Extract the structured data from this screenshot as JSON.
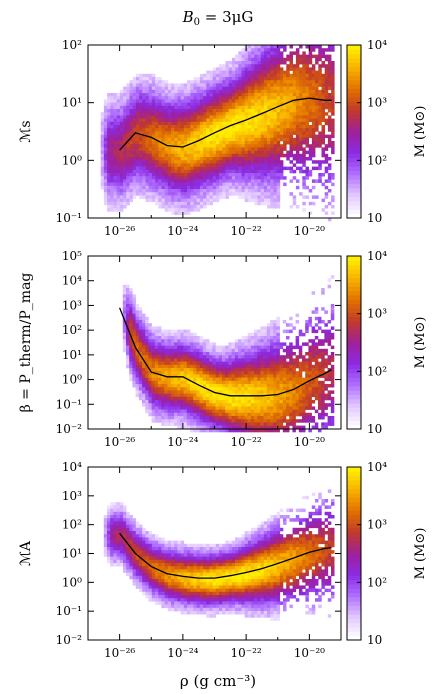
{
  "figure": {
    "title_parts": {
      "base": "B",
      "sub": "0",
      "rest": " = 3μG"
    },
    "xlabel": "ρ  (g cm⁻³)"
  },
  "colors": {
    "cmap": [
      "#ffffff",
      "#e2c8ff",
      "#b070ff",
      "#8a2be2",
      "#a0209a",
      "#c0392b",
      "#e07000",
      "#f8b000",
      "#ffee00"
    ]
  },
  "chart_data": [
    {
      "type": "heatmap",
      "panel": "top",
      "ylabel": "ℳs",
      "xscale": "log",
      "yscale": "log",
      "xlim": [
        1e-27,
        1e-19
      ],
      "ylim": [
        0.1,
        100
      ],
      "x_ticks": [
        "10⁻²⁶",
        "10⁻²⁴",
        "10⁻²²",
        "10⁻²⁰"
      ],
      "y_ticks": [
        "10⁻¹",
        "10⁰",
        "10¹",
        "10²"
      ],
      "colorbar": {
        "label": "M (M⊙)",
        "range": [
          10,
          10000
        ],
        "ticks": [
          "10",
          "10²",
          "10³",
          "10⁴"
        ],
        "scale": "log"
      },
      "cloud": {
        "xmin": -26.7,
        "xmax": -19.3,
        "center": [
          -22.5,
          0.6
        ],
        "width_dex": 0.7
      },
      "median_line": {
        "x_log": [
          -26.0,
          -25.5,
          -25.0,
          -24.5,
          -24.0,
          -23.5,
          -23.0,
          -22.5,
          -22.0,
          -21.5,
          -21.0,
          -20.5,
          -20.0,
          -19.5,
          -19.3
        ],
        "y": [
          1.5,
          3.0,
          2.5,
          1.8,
          1.7,
          2.2,
          3.0,
          4.0,
          5.0,
          6.5,
          8.5,
          11,
          12,
          11,
          11
        ]
      }
    },
    {
      "type": "heatmap",
      "panel": "middle",
      "ylabel": "β = P_therm/P_mag",
      "xscale": "log",
      "yscale": "log",
      "xlim": [
        1e-27,
        1e-19
      ],
      "ylim": [
        0.01,
        100000
      ],
      "x_ticks": [
        "10⁻²⁶",
        "10⁻²⁴",
        "10⁻²²",
        "10⁻²⁰"
      ],
      "y_ticks": [
        "10⁻²",
        "10⁻¹",
        "10⁰",
        "10¹",
        "10²",
        "10³",
        "10⁴",
        "10⁵"
      ],
      "colorbar": {
        "label": "M (M⊙)",
        "range": [
          10,
          10000
        ],
        "ticks": [
          "10",
          "10²",
          "10³",
          "10⁴"
        ],
        "scale": "log"
      },
      "cloud": {
        "xmin": -26.0,
        "xmax": -19.3,
        "center": [
          -22.8,
          -0.3
        ],
        "width_dex": 1.2
      },
      "median_line": {
        "x_log": [
          -26.0,
          -25.5,
          -25.0,
          -24.5,
          -24.0,
          -23.5,
          -23.0,
          -22.5,
          -22.0,
          -21.5,
          -21.0,
          -20.5,
          -20.0,
          -19.5,
          -19.3
        ],
        "y": [
          800,
          20,
          2,
          1.3,
          1.3,
          0.6,
          0.3,
          0.22,
          0.22,
          0.22,
          0.25,
          0.4,
          0.9,
          1.8,
          2.5
        ]
      }
    },
    {
      "type": "heatmap",
      "panel": "bottom",
      "ylabel": "ℳA",
      "xscale": "log",
      "yscale": "log",
      "xlim": [
        1e-27,
        1e-19
      ],
      "ylim": [
        0.01,
        10000
      ],
      "x_ticks": [
        "10⁻²⁶",
        "10⁻²⁴",
        "10⁻²²",
        "10⁻²⁰"
      ],
      "y_ticks": [
        "10⁻²",
        "10⁻¹",
        "10⁰",
        "10¹",
        "10²",
        "10³",
        "10⁴"
      ],
      "colorbar": {
        "label": "M (M⊙)",
        "range": [
          10,
          10000
        ],
        "ticks": [
          "10",
          "10²",
          "10³",
          "10⁴"
        ],
        "scale": "log"
      },
      "cloud": {
        "xmin": -26.6,
        "xmax": -19.3,
        "center": [
          -22.5,
          0.5
        ],
        "width_dex": 0.75
      },
      "median_line": {
        "x_log": [
          -26.0,
          -25.5,
          -25.0,
          -24.5,
          -24.0,
          -23.5,
          -23.0,
          -22.5,
          -22.0,
          -21.5,
          -21.0,
          -20.5,
          -20.0,
          -19.5,
          -19.3
        ],
        "y": [
          50,
          10,
          3.5,
          2.0,
          1.6,
          1.4,
          1.4,
          1.7,
          2.2,
          3.0,
          4.5,
          7,
          11,
          15,
          16
        ]
      }
    }
  ]
}
